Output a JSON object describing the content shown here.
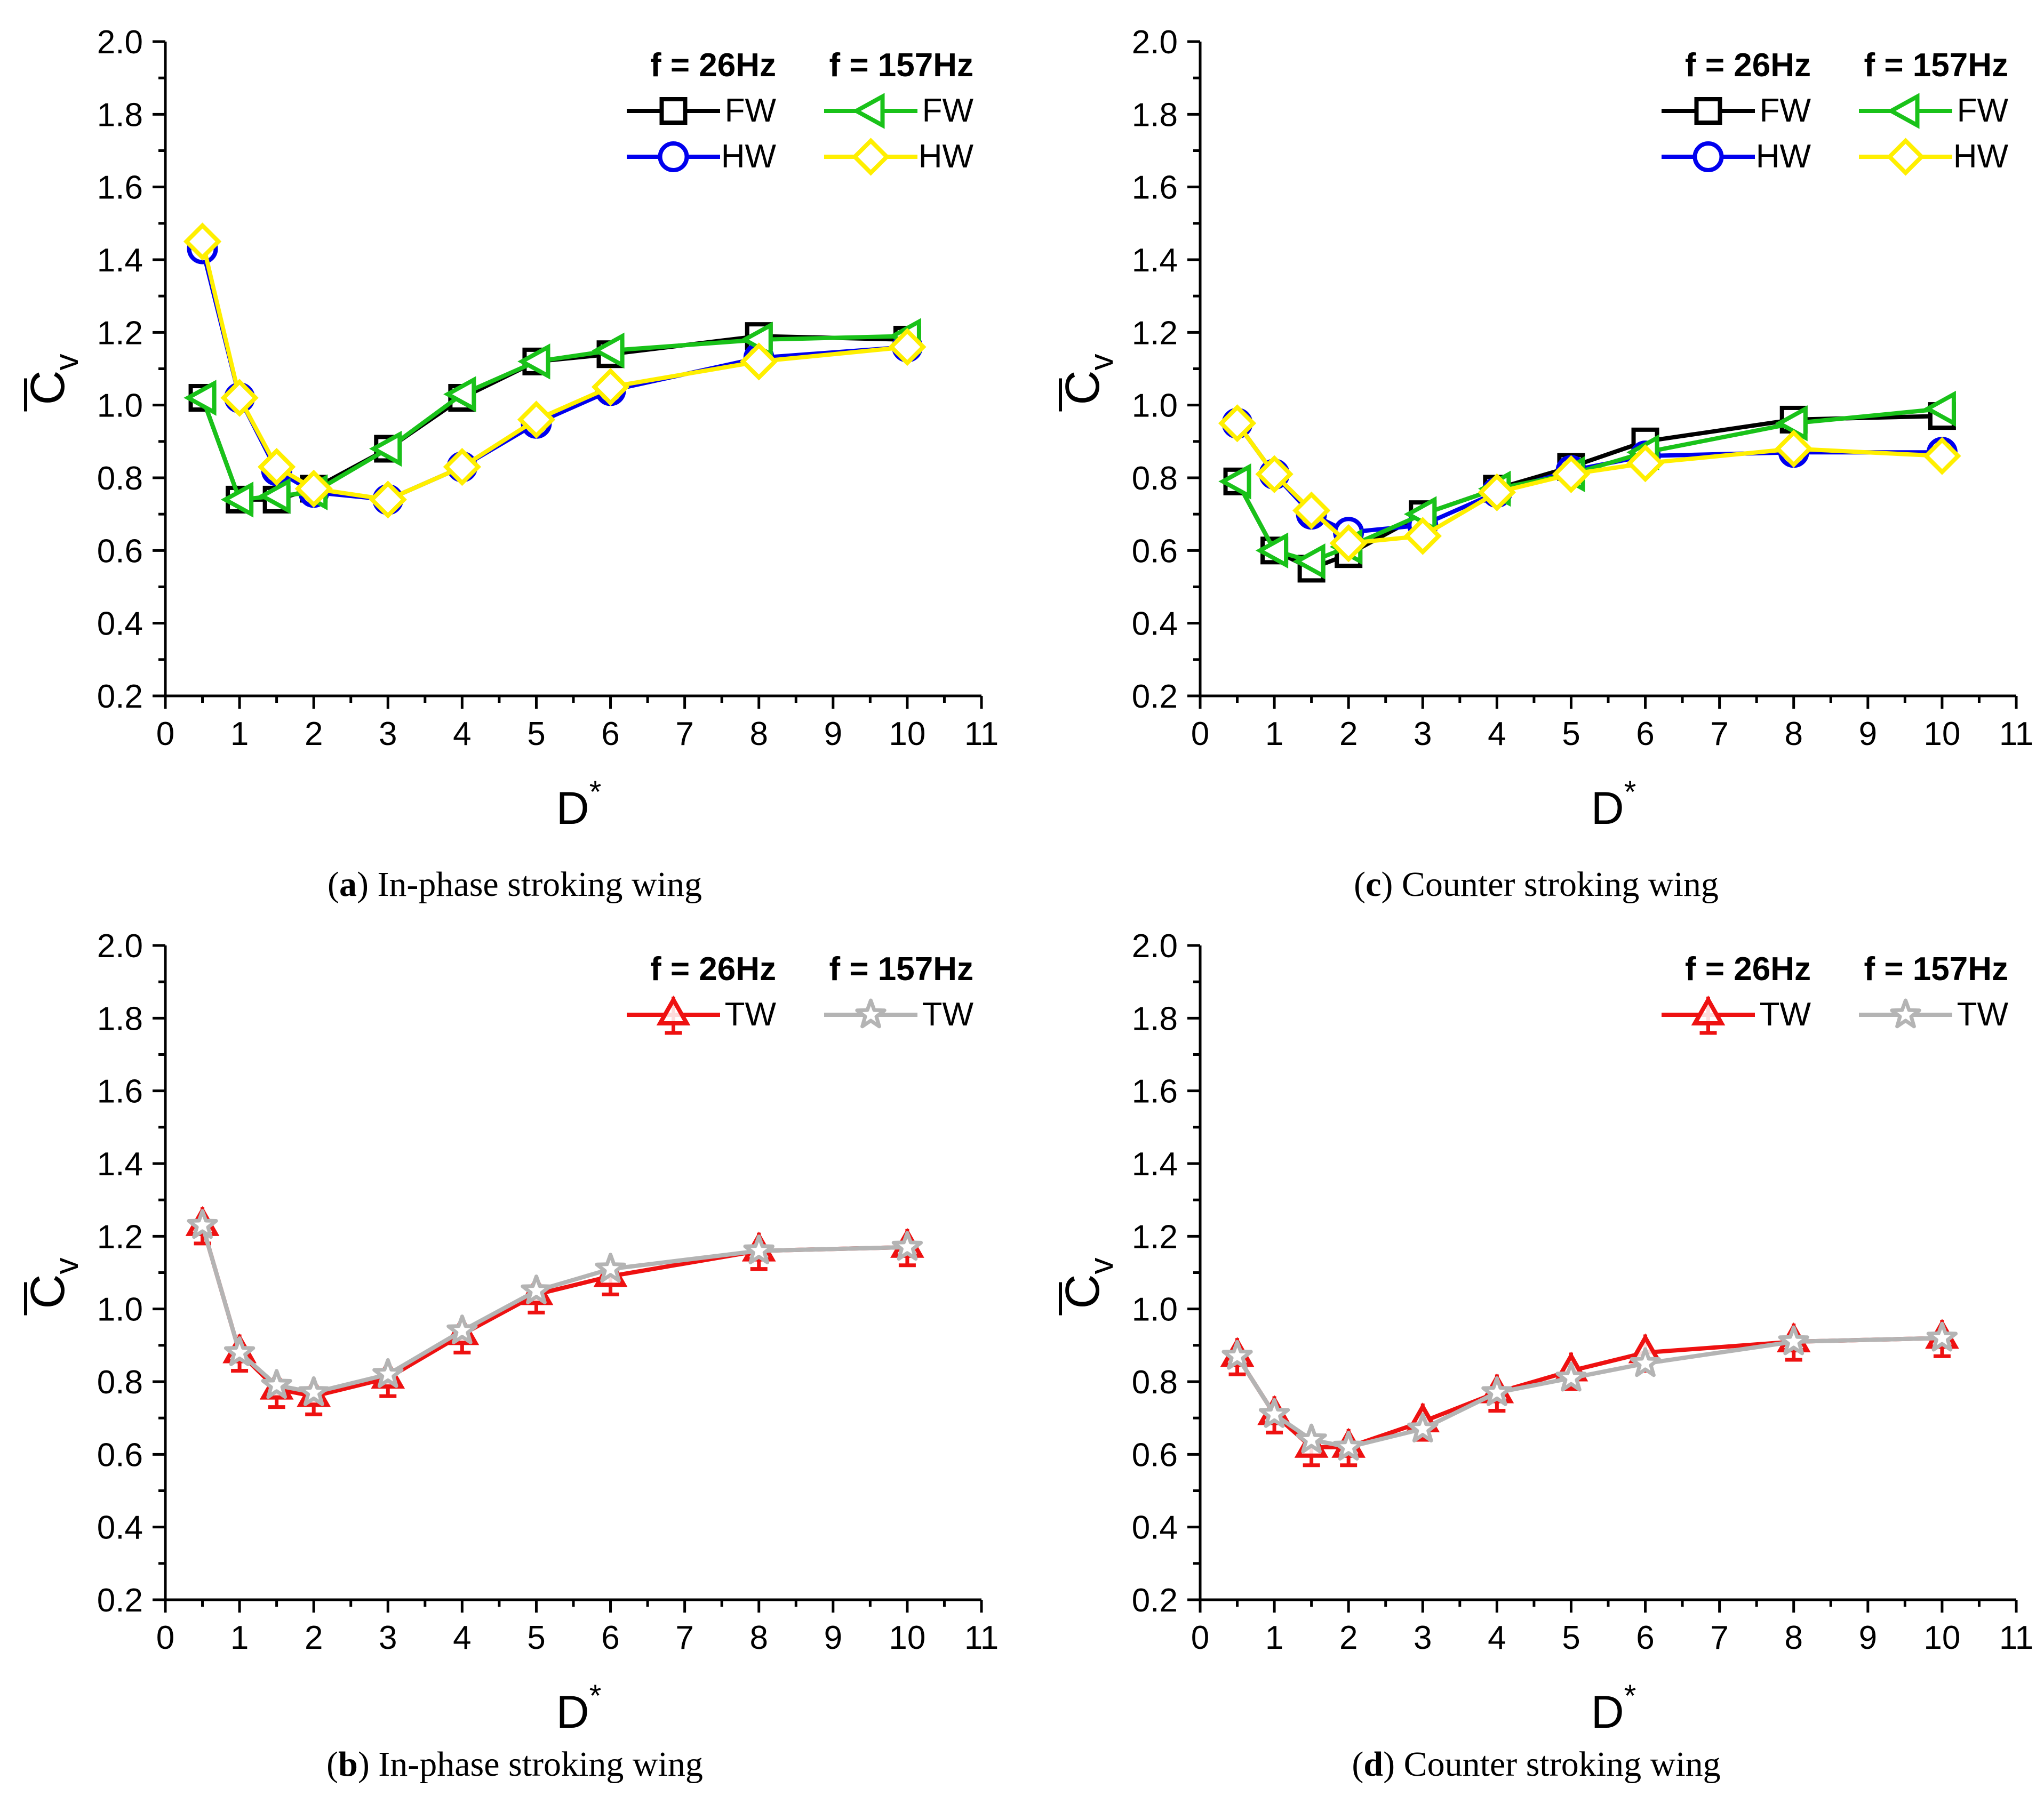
{
  "figure": {
    "panels": [
      {
        "id": "a",
        "caption_letter": "a",
        "caption_text": "In-phase stroking wing",
        "legend": {
          "group_titles": [
            "f = 26Hz",
            "f = 157Hz"
          ]
        }
      },
      {
        "id": "b",
        "caption_letter": "b",
        "caption_text": "In-phase stroking wing",
        "legend": {
          "group_titles": [
            "f = 26Hz",
            "f = 157Hz"
          ]
        }
      },
      {
        "id": "c",
        "caption_letter": "c",
        "caption_text": "Counter stroking wing",
        "legend": {
          "group_titles": [
            "f = 26Hz",
            "f = 157Hz"
          ]
        }
      },
      {
        "id": "d",
        "caption_letter": "d",
        "caption_text": "Counter stroking wing",
        "legend": {
          "group_titles": [
            "f = 26Hz",
            "f = 157Hz"
          ]
        }
      }
    ]
  },
  "chart_data": [
    {
      "panel": "a",
      "type": "line",
      "title": "",
      "xlabel": "D",
      "xlabel_sup": "*",
      "ylabel": "C",
      "ylabel_sub": "v",
      "xlim": [
        0,
        11
      ],
      "ylim": [
        0.2,
        2.0
      ],
      "xticks": [
        "0",
        "1",
        "2",
        "3",
        "4",
        "5",
        "6",
        "7",
        "8",
        "9",
        "10",
        "11"
      ],
      "yticks": [
        "0.2",
        "0.4",
        "0.6",
        "0.8",
        "1.0",
        "1.2",
        "1.4",
        "1.6",
        "1.8",
        "2.0"
      ],
      "grid": false,
      "legend_position": "top-right",
      "x": [
        0.5,
        1,
        1.5,
        2,
        3,
        4,
        5,
        6,
        8,
        10
      ],
      "series": [
        {
          "name": "FW",
          "group": "f = 26Hz",
          "color": "#000000",
          "marker": "square",
          "values": [
            1.02,
            0.74,
            0.74,
            0.77,
            0.88,
            1.02,
            1.12,
            1.14,
            1.19,
            1.18
          ]
        },
        {
          "name": "HW",
          "group": "f = 26Hz",
          "color": "#0000ee",
          "marker": "circle",
          "values": [
            1.43,
            1.02,
            0.82,
            0.76,
            0.74,
            0.83,
            0.95,
            1.04,
            1.13,
            1.16
          ]
        },
        {
          "name": "FW",
          "group": "f = 157Hz",
          "color": "#19c219",
          "marker": "triangle-left",
          "values": [
            1.02,
            0.74,
            0.75,
            0.76,
            0.88,
            1.03,
            1.12,
            1.15,
            1.18,
            1.19
          ]
        },
        {
          "name": "HW",
          "group": "f = 157Hz",
          "color": "#ffef00",
          "marker": "diamond",
          "values": [
            1.45,
            1.02,
            0.83,
            0.77,
            0.74,
            0.83,
            0.96,
            1.05,
            1.12,
            1.16
          ]
        }
      ]
    },
    {
      "panel": "b",
      "type": "line",
      "title": "",
      "xlabel": "D",
      "xlabel_sup": "*",
      "ylabel": "C",
      "ylabel_sub": "v",
      "xlim": [
        0,
        11
      ],
      "ylim": [
        0.2,
        2.0
      ],
      "xticks": [
        "0",
        "1",
        "2",
        "3",
        "4",
        "5",
        "6",
        "7",
        "8",
        "9",
        "10",
        "11"
      ],
      "yticks": [
        "0.2",
        "0.4",
        "0.6",
        "0.8",
        "1.0",
        "1.2",
        "1.4",
        "1.6",
        "1.8",
        "2.0"
      ],
      "grid": false,
      "legend_position": "top-right",
      "x": [
        0.5,
        1,
        1.5,
        2,
        3,
        4,
        5,
        6,
        8,
        10
      ],
      "series": [
        {
          "name": "TW",
          "group": "f = 26Hz",
          "color": "#ee1111",
          "marker": "triangle-errorbar",
          "values": [
            1.23,
            0.88,
            0.78,
            0.76,
            0.81,
            0.93,
            1.04,
            1.09,
            1.16,
            1.17
          ]
        },
        {
          "name": "TW",
          "group": "f = 157Hz",
          "color": "#b4b4b4",
          "marker": "star",
          "values": [
            1.23,
            0.88,
            0.79,
            0.77,
            0.82,
            0.94,
            1.05,
            1.11,
            1.16,
            1.17
          ]
        }
      ]
    },
    {
      "panel": "c",
      "type": "line",
      "title": "",
      "xlabel": "D",
      "xlabel_sup": "*",
      "ylabel": "C",
      "ylabel_sub": "v",
      "xlim": [
        0,
        11
      ],
      "ylim": [
        0.2,
        2.0
      ],
      "xticks": [
        "0",
        "1",
        "2",
        "3",
        "4",
        "5",
        "6",
        "7",
        "8",
        "9",
        "10",
        "11"
      ],
      "yticks": [
        "0.2",
        "0.4",
        "0.6",
        "0.8",
        "1.0",
        "1.2",
        "1.4",
        "1.6",
        "1.8",
        "2.0"
      ],
      "grid": false,
      "legend_position": "top-right",
      "x": [
        0.5,
        1,
        1.5,
        2,
        3,
        4,
        5,
        6,
        8,
        10
      ],
      "series": [
        {
          "name": "FW",
          "group": "f = 26Hz",
          "color": "#000000",
          "marker": "square",
          "values": [
            0.79,
            0.6,
            0.55,
            0.59,
            0.7,
            0.77,
            0.83,
            0.9,
            0.96,
            0.97
          ]
        },
        {
          "name": "HW",
          "group": "f = 26Hz",
          "color": "#0000ee",
          "marker": "circle",
          "values": [
            0.95,
            0.81,
            0.7,
            0.65,
            0.67,
            0.76,
            0.82,
            0.86,
            0.87,
            0.87
          ]
        },
        {
          "name": "FW",
          "group": "f = 157Hz",
          "color": "#19c219",
          "marker": "triangle-left",
          "values": [
            0.79,
            0.6,
            0.57,
            0.61,
            0.7,
            0.77,
            0.81,
            0.87,
            0.95,
            0.99
          ]
        },
        {
          "name": "HW",
          "group": "f = 157Hz",
          "color": "#ffef00",
          "marker": "diamond",
          "values": [
            0.95,
            0.81,
            0.71,
            0.62,
            0.64,
            0.76,
            0.81,
            0.84,
            0.88,
            0.86
          ]
        }
      ]
    },
    {
      "panel": "d",
      "type": "line",
      "title": "",
      "xlabel": "D",
      "xlabel_sup": "*",
      "ylabel": "C",
      "ylabel_sub": "v",
      "xlim": [
        0,
        11
      ],
      "ylim": [
        0.2,
        2.0
      ],
      "xticks": [
        "0",
        "1",
        "2",
        "3",
        "4",
        "5",
        "6",
        "7",
        "8",
        "9",
        "10",
        "11"
      ],
      "yticks": [
        "0.2",
        "0.4",
        "0.6",
        "0.8",
        "1.0",
        "1.2",
        "1.4",
        "1.6",
        "1.8",
        "2.0"
      ],
      "grid": false,
      "legend_position": "top-right",
      "x": [
        0.5,
        1,
        1.5,
        2,
        3,
        4,
        5,
        6,
        8,
        10
      ],
      "series": [
        {
          "name": "TW",
          "group": "f = 26Hz",
          "color": "#ee1111",
          "marker": "triangle-errorbar",
          "values": [
            0.87,
            0.71,
            0.62,
            0.62,
            0.69,
            0.77,
            0.83,
            0.88,
            0.91,
            0.92
          ]
        },
        {
          "name": "TW",
          "group": "f = 157Hz",
          "color": "#b4b4b4",
          "marker": "star",
          "values": [
            0.87,
            0.71,
            0.64,
            0.62,
            0.67,
            0.77,
            0.81,
            0.85,
            0.91,
            0.92
          ]
        }
      ]
    }
  ]
}
